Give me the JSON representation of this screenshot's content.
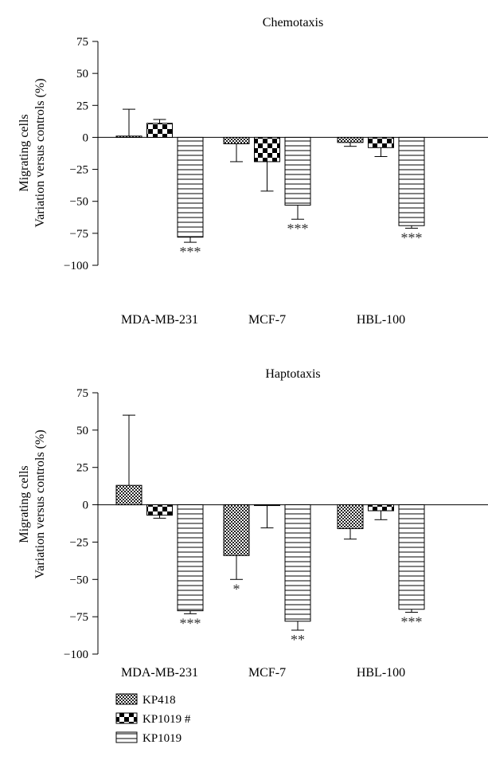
{
  "legend": [
    {
      "label": "KP418",
      "pattern": "fine-check"
    },
    {
      "label": "KP1019 #",
      "pattern": "coarse-check"
    },
    {
      "label": "KP1019",
      "pattern": "hlines"
    }
  ],
  "chart_data": [
    {
      "type": "bar",
      "title": "Chemotaxis",
      "ylabel_lines": [
        "Migrating cells",
        "Variation versus controls (%)"
      ],
      "ylim": [
        -100,
        75
      ],
      "yticks": [
        75,
        50,
        25,
        0,
        -25,
        -50,
        -75,
        -100
      ],
      "ytick_labels": [
        "75",
        "50",
        "25",
        "0",
        "−25",
        "−50",
        "−75",
        "−100"
      ],
      "categories": [
        "MDA-MB-231",
        "MCF-7",
        "HBL-100"
      ],
      "series": [
        {
          "name": "KP418",
          "values": [
            1,
            -5,
            -4
          ],
          "errors": [
            21,
            14,
            3
          ],
          "significance": [
            "",
            "",
            ""
          ]
        },
        {
          "name": "KP1019 #",
          "values": [
            11,
            -19,
            -8
          ],
          "errors": [
            3,
            23,
            7
          ],
          "significance": [
            "",
            "",
            ""
          ]
        },
        {
          "name": "KP1019",
          "values": [
            -78,
            -53,
            -69
          ],
          "errors": [
            4,
            11,
            2
          ],
          "significance": [
            "***",
            "***",
            "***"
          ]
        }
      ]
    },
    {
      "type": "bar",
      "title": "Haptotaxis",
      "ylabel_lines": [
        "Migrating cells",
        "Variation versus controls (%)"
      ],
      "ylim": [
        -100,
        75
      ],
      "yticks": [
        75,
        50,
        25,
        0,
        -25,
        -50,
        -75,
        -100
      ],
      "ytick_labels": [
        "75",
        "50",
        "25",
        "0",
        "−25",
        "−50",
        "−75",
        "−100"
      ],
      "categories": [
        "MDA-MB-231",
        "MCF-7",
        "HBL-100"
      ],
      "series": [
        {
          "name": "KP418",
          "values": [
            13,
            -34,
            -16
          ],
          "errors": [
            47,
            16,
            7
          ],
          "significance": [
            "",
            "*",
            ""
          ]
        },
        {
          "name": "KP1019 #",
          "values": [
            -7,
            -0.5,
            -4
          ],
          "errors": [
            2,
            15,
            6
          ],
          "significance": [
            "",
            "",
            ""
          ]
        },
        {
          "name": "KP1019",
          "values": [
            -71,
            -78,
            -70
          ],
          "errors": [
            2,
            6,
            2
          ],
          "significance": [
            "***",
            "**",
            "***"
          ]
        }
      ]
    }
  ]
}
